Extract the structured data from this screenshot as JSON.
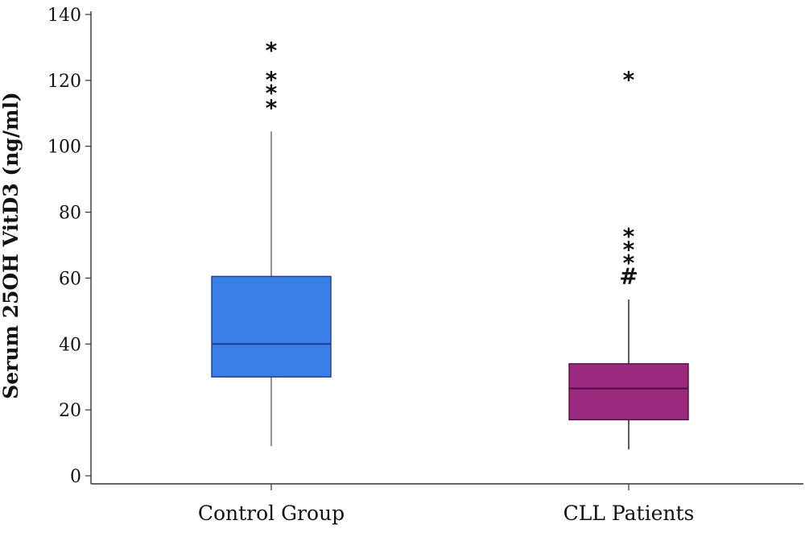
{
  "chart_data": {
    "type": "box",
    "title": "",
    "xlabel": "",
    "ylabel": "Serum 25OH VitD3 (ng/ml)",
    "ylim": [
      0,
      140
    ],
    "yticks": [
      0,
      20,
      40,
      60,
      80,
      100,
      120,
      140
    ],
    "grid": false,
    "categories": [
      "Control Group",
      "CLL Patients"
    ],
    "boxes": [
      {
        "category": "Control Group",
        "min": 9,
        "q1": 30,
        "median": 40,
        "q3": 60.5,
        "max": 104.5,
        "color": "#3a7ee8",
        "edge_color": "#1f3f8a",
        "outliers": [
          {
            "value": 113.5,
            "marker": "*"
          },
          {
            "value": 118,
            "marker": "*"
          },
          {
            "value": 122,
            "marker": "*"
          },
          {
            "value": 131,
            "marker": "*"
          }
        ]
      },
      {
        "category": "CLL Patients",
        "min": 8,
        "q1": 17,
        "median": 26.5,
        "q3": 34,
        "max": 53.5,
        "color": "#9b2a7e",
        "edge_color": "#4a1040",
        "outliers": [
          {
            "value": 60.5,
            "marker": "#"
          },
          {
            "value": 66.5,
            "marker": "*"
          },
          {
            "value": 70.5,
            "marker": "*"
          },
          {
            "value": 74.5,
            "marker": "*"
          },
          {
            "value": 122,
            "marker": "*"
          }
        ]
      }
    ]
  }
}
